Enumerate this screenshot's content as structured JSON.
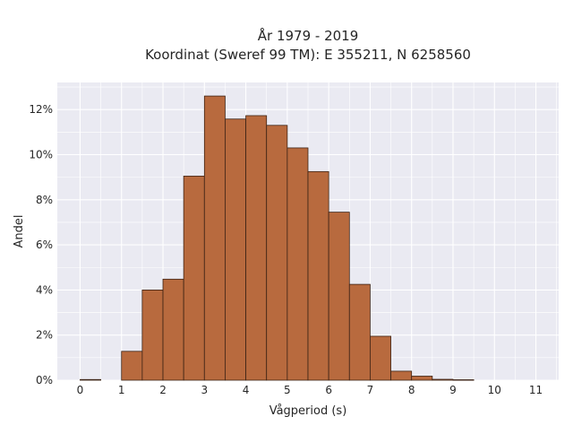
{
  "chart_data": {
    "type": "bar",
    "title_lines": [
      "År 1979 - 2019",
      "Koordinat (Sweref 99 TM): E 355211, N 6258560"
    ],
    "xlabel": "Vågperiod (s)",
    "ylabel": "Andel",
    "xlim": [
      -0.55,
      11.55
    ],
    "ylim": [
      0,
      13.2
    ],
    "x_ticks": [
      0,
      1,
      2,
      3,
      4,
      5,
      6,
      7,
      8,
      9,
      10,
      11
    ],
    "y_ticks": [
      0,
      2,
      4,
      6,
      8,
      10,
      12
    ],
    "y_tick_format": "percent",
    "grid": true,
    "bin_width": 0.5,
    "bins": [
      {
        "start": 0.0,
        "value": 0.03
      },
      {
        "start": 0.5,
        "value": 0.0
      },
      {
        "start": 1.0,
        "value": 1.28
      },
      {
        "start": 1.5,
        "value": 4.0
      },
      {
        "start": 2.0,
        "value": 4.48
      },
      {
        "start": 2.5,
        "value": 9.05
      },
      {
        "start": 3.0,
        "value": 12.6
      },
      {
        "start": 3.5,
        "value": 11.58
      },
      {
        "start": 4.0,
        "value": 11.73
      },
      {
        "start": 4.5,
        "value": 11.3
      },
      {
        "start": 5.0,
        "value": 10.3
      },
      {
        "start": 5.5,
        "value": 9.25
      },
      {
        "start": 6.0,
        "value": 7.45
      },
      {
        "start": 6.5,
        "value": 4.25
      },
      {
        "start": 7.0,
        "value": 1.95
      },
      {
        "start": 7.5,
        "value": 0.4
      },
      {
        "start": 8.0,
        "value": 0.18
      },
      {
        "start": 8.5,
        "value": 0.04
      },
      {
        "start": 9.0,
        "value": 0.02
      },
      {
        "start": 9.5,
        "value": 0.0
      },
      {
        "start": 10.0,
        "value": 0.0
      },
      {
        "start": 10.5,
        "value": 0.0
      }
    ],
    "colors": {
      "bar_fill": "#b86a3e",
      "bar_stroke": "#3d2315",
      "plot_bg": "#eaeaf2",
      "grid": "#ffffff"
    }
  }
}
